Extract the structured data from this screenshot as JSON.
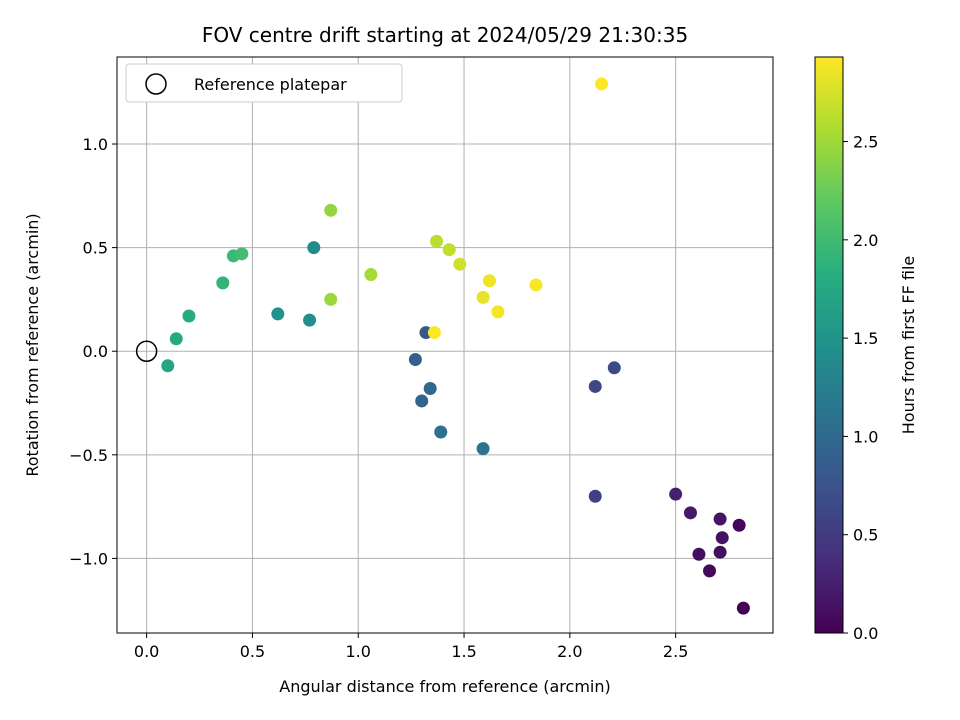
{
  "chart_data": {
    "type": "scatter",
    "title": "FOV centre drift starting at 2024/05/29 21:30:35",
    "xlabel": "Angular distance from reference (arcmin)",
    "ylabel": "Rotation from reference (arcmin)",
    "xlim": [
      -0.14,
      2.96
    ],
    "ylim": [
      -1.36,
      1.42
    ],
    "xticks": [
      0.0,
      0.5,
      1.0,
      1.5,
      2.0,
      2.5
    ],
    "xtick_labels": [
      "0.0",
      "0.5",
      "1.0",
      "1.5",
      "2.0",
      "2.5"
    ],
    "yticks": [
      -1.0,
      -0.5,
      0.0,
      0.5,
      1.0
    ],
    "ytick_labels": [
      "−1.0",
      "−0.5",
      "0.0",
      "0.5",
      "1.0"
    ],
    "grid": true,
    "legend": {
      "placement": "upper-left",
      "entries": [
        "Reference platepar"
      ]
    },
    "reference_point": {
      "x": 0.0,
      "y": 0.0
    },
    "colorbar": {
      "label": "Hours from first FF file",
      "range": [
        0.0,
        2.93
      ],
      "ticks": [
        0.0,
        0.5,
        1.0,
        1.5,
        2.0,
        2.5
      ],
      "tick_labels": [
        "0.0",
        "0.5",
        "1.0",
        "1.5",
        "2.0",
        "2.5"
      ],
      "colormap": "viridis"
    },
    "points": [
      {
        "x": 2.82,
        "y": -1.24,
        "c": 0.0
      },
      {
        "x": 2.66,
        "y": -1.06,
        "c": 0.07
      },
      {
        "x": 2.61,
        "y": -0.98,
        "c": 0.1
      },
      {
        "x": 2.71,
        "y": -0.97,
        "c": 0.12
      },
      {
        "x": 2.72,
        "y": -0.9,
        "c": 0.14
      },
      {
        "x": 2.8,
        "y": -0.84,
        "c": 0.05
      },
      {
        "x": 2.71,
        "y": -0.81,
        "c": 0.17
      },
      {
        "x": 2.57,
        "y": -0.78,
        "c": 0.2
      },
      {
        "x": 2.5,
        "y": -0.69,
        "c": 0.25
      },
      {
        "x": 2.12,
        "y": -0.7,
        "c": 0.55
      },
      {
        "x": 2.12,
        "y": -0.17,
        "c": 0.62
      },
      {
        "x": 2.21,
        "y": -0.08,
        "c": 0.65
      },
      {
        "x": 1.32,
        "y": 0.09,
        "c": 0.8
      },
      {
        "x": 1.27,
        "y": -0.04,
        "c": 0.9
      },
      {
        "x": 1.3,
        "y": -0.24,
        "c": 0.95
      },
      {
        "x": 1.34,
        "y": -0.18,
        "c": 1.0
      },
      {
        "x": 1.39,
        "y": -0.39,
        "c": 1.05
      },
      {
        "x": 1.59,
        "y": -0.47,
        "c": 1.12
      },
      {
        "x": 0.79,
        "y": 0.5,
        "c": 1.4
      },
      {
        "x": 0.77,
        "y": 0.15,
        "c": 1.44
      },
      {
        "x": 0.62,
        "y": 0.18,
        "c": 1.48
      },
      {
        "x": 0.1,
        "y": -0.07,
        "c": 1.72
      },
      {
        "x": 0.14,
        "y": 0.06,
        "c": 1.77
      },
      {
        "x": 0.2,
        "y": 0.17,
        "c": 1.8
      },
      {
        "x": 0.36,
        "y": 0.33,
        "c": 1.9
      },
      {
        "x": 0.41,
        "y": 0.46,
        "c": 1.97
      },
      {
        "x": 0.45,
        "y": 0.47,
        "c": 2.03
      },
      {
        "x": 0.87,
        "y": 0.68,
        "c": 2.45
      },
      {
        "x": 0.87,
        "y": 0.25,
        "c": 2.48
      },
      {
        "x": 1.06,
        "y": 0.37,
        "c": 2.53
      },
      {
        "x": 1.37,
        "y": 0.53,
        "c": 2.62
      },
      {
        "x": 1.43,
        "y": 0.49,
        "c": 2.65
      },
      {
        "x": 1.48,
        "y": 0.42,
        "c": 2.72
      },
      {
        "x": 1.59,
        "y": 0.26,
        "c": 2.82
      },
      {
        "x": 1.62,
        "y": 0.34,
        "c": 2.86
      },
      {
        "x": 1.66,
        "y": 0.19,
        "c": 2.89
      },
      {
        "x": 1.84,
        "y": 0.32,
        "c": 2.91
      },
      {
        "x": 1.36,
        "y": 0.09,
        "c": 2.92
      },
      {
        "x": 2.15,
        "y": 1.29,
        "c": 2.93
      }
    ]
  }
}
